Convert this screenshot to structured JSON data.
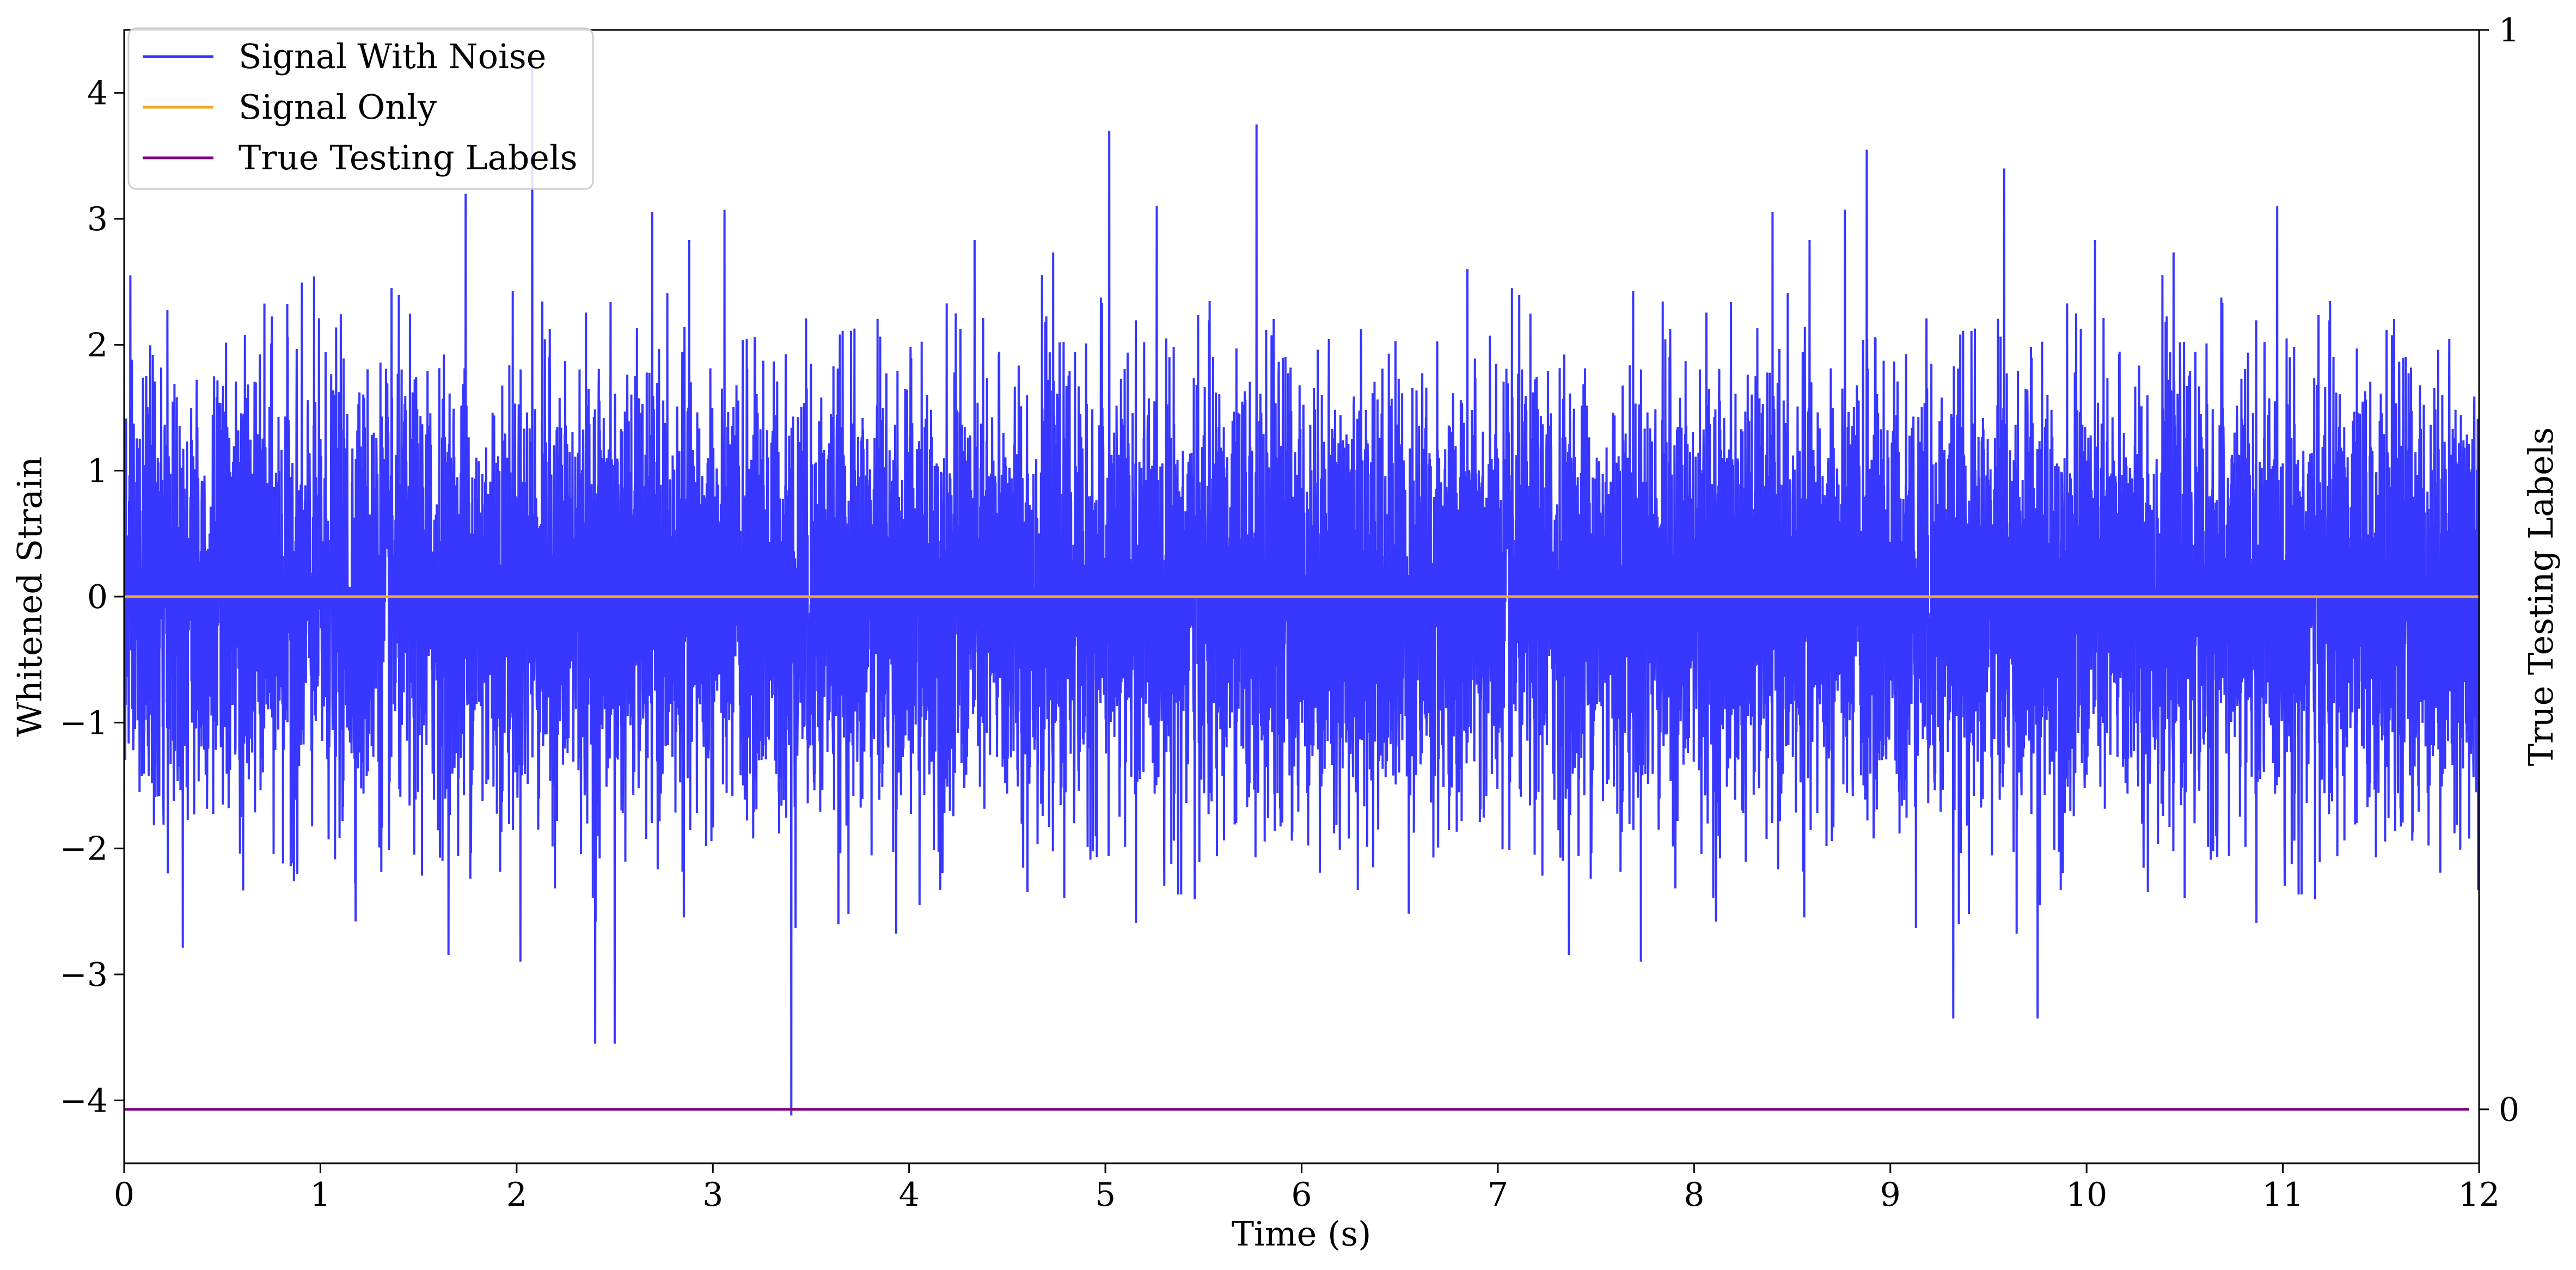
{
  "chart_data": {
    "type": "line",
    "xlabel": "Time (s)",
    "ylabel": "Whitened Strain",
    "ylabel_right": "True Testing Labels",
    "xlim": [
      0,
      12
    ],
    "ylim": [
      -4.5,
      4.5
    ],
    "ylim_right": [
      -0.05,
      1.0
    ],
    "x_ticks": [
      0,
      1,
      2,
      3,
      4,
      5,
      6,
      7,
      8,
      9,
      10,
      11,
      12
    ],
    "x_tick_labels": [
      "0",
      "1",
      "2",
      "3",
      "4",
      "5",
      "6",
      "7",
      "8",
      "9",
      "10",
      "11",
      "12"
    ],
    "y_ticks": [
      -4,
      -3,
      -2,
      -1,
      0,
      1,
      2,
      3,
      4
    ],
    "y_tick_labels": [
      "−4",
      "−3",
      "−2",
      "−1",
      "0",
      "1",
      "2",
      "3",
      "4"
    ],
    "y_ticks_right": [
      0,
      1
    ],
    "y_tick_labels_right": [
      "0",
      "1"
    ],
    "grid": false,
    "legend_position": "top-left",
    "series": [
      {
        "name": "Signal With Noise",
        "color": "#3333ff",
        "axis": "left",
        "distribution": "noise",
        "x_range": [
          0,
          12
        ],
        "typical_band": [
          -1.8,
          1.8
        ],
        "notable_points": [
          {
            "x": 2.08,
            "y": 4.3
          },
          {
            "x": 1.74,
            "y": 3.2
          },
          {
            "x": 5.02,
            "y": 3.7
          },
          {
            "x": 5.77,
            "y": 3.75
          },
          {
            "x": 8.88,
            "y": 3.55
          },
          {
            "x": 9.58,
            "y": 3.4
          },
          {
            "x": 3.4,
            "y": -4.12
          },
          {
            "x": 2.4,
            "y": -3.55
          },
          {
            "x": 2.5,
            "y": -3.55
          },
          {
            "x": 9.32,
            "y": -3.35
          },
          {
            "x": 9.75,
            "y": -3.35
          }
        ]
      },
      {
        "name": "Signal Only",
        "color": "#f5a623",
        "axis": "left",
        "x": [
          0,
          12
        ],
        "values": [
          0,
          0
        ]
      },
      {
        "name": "True Testing Labels",
        "color": "#800080",
        "axis": "right",
        "x": [
          0,
          11.95
        ],
        "values": [
          0,
          0
        ]
      }
    ]
  }
}
